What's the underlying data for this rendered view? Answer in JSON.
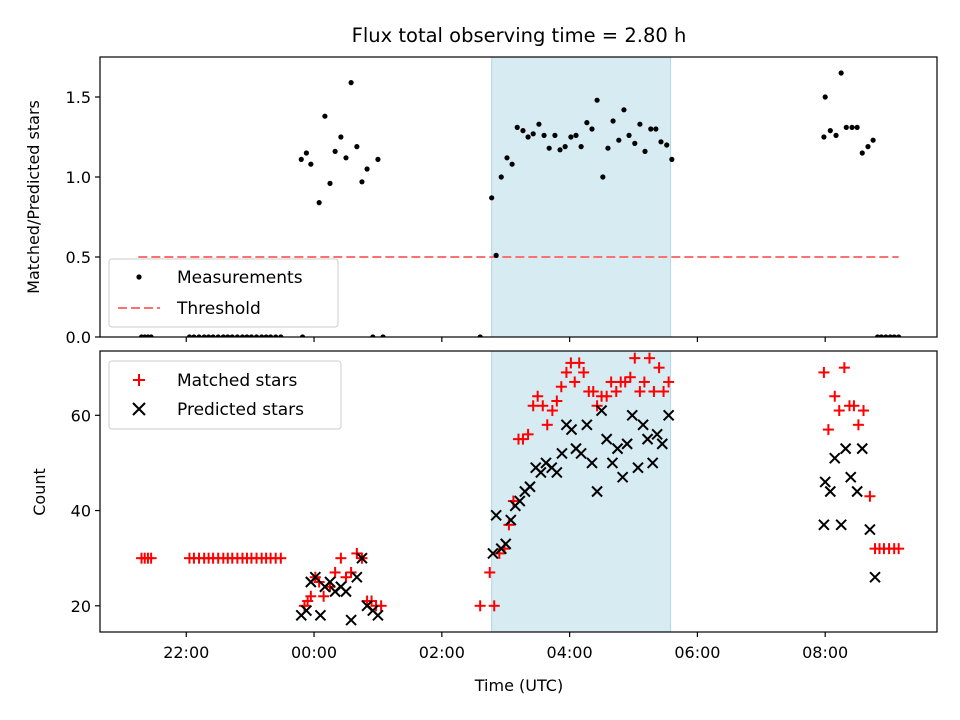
{
  "figure_title": "Flux total observing time = 2.80 h",
  "colors": {
    "measurement": "#000000",
    "threshold": "#ff7070",
    "matched": "#ff0000",
    "predicted": "#000000",
    "span": "#add8e6"
  },
  "chart_data": [
    {
      "type": "scatter",
      "title": "Flux total observing time = 2.80 h",
      "xlabel": "",
      "ylabel": "Matched/Predicted stars",
      "x_unit": "hours relative to 00:00 UTC",
      "xlim": [
        -3.35,
        9.75
      ],
      "ylim": [
        0,
        1.75
      ],
      "yticks": [
        0.0,
        0.5,
        1.0,
        1.5
      ],
      "ytick_labels": [
        "0.0",
        "0.5",
        "1.0",
        "1.5"
      ],
      "grid": false,
      "legend_position": "lower-left",
      "shaded_span": {
        "x": [
          2.78,
          5.58
        ]
      },
      "threshold": {
        "name": "Threshold",
        "y": 0.5,
        "x": [
          -2.75,
          9.15
        ],
        "style": "dashed"
      },
      "series": [
        {
          "name": "Measurements",
          "marker": "dot",
          "points": [
            [
              -2.7,
              0
            ],
            [
              -2.65,
              0
            ],
            [
              -2.6,
              0
            ],
            [
              -2.55,
              0
            ],
            [
              -1.95,
              0
            ],
            [
              -1.88,
              0
            ],
            [
              -1.8,
              0
            ],
            [
              -1.72,
              0
            ],
            [
              -1.65,
              0
            ],
            [
              -1.58,
              0
            ],
            [
              -1.5,
              0
            ],
            [
              -1.42,
              0
            ],
            [
              -1.35,
              0
            ],
            [
              -1.28,
              0
            ],
            [
              -1.2,
              0
            ],
            [
              -1.12,
              0
            ],
            [
              -1.05,
              0
            ],
            [
              -0.98,
              0
            ],
            [
              -0.9,
              0
            ],
            [
              -0.82,
              0
            ],
            [
              -0.75,
              0
            ],
            [
              -0.68,
              0
            ],
            [
              -0.6,
              0
            ],
            [
              -0.52,
              0
            ],
            [
              -0.18,
              0
            ],
            [
              -0.2,
              1.11
            ],
            [
              -0.12,
              1.15
            ],
            [
              -0.05,
              1.08
            ],
            [
              0.08,
              0.84
            ],
            [
              0.17,
              1.38
            ],
            [
              0.25,
              0.96
            ],
            [
              0.33,
              1.16
            ],
            [
              0.42,
              1.25
            ],
            [
              0.5,
              1.12
            ],
            [
              0.58,
              1.59
            ],
            [
              0.67,
              1.19
            ],
            [
              0.75,
              0.97
            ],
            [
              0.83,
              1.05
            ],
            [
              1.0,
              1.11
            ],
            [
              0.92,
              0
            ],
            [
              1.08,
              0
            ],
            [
              2.6,
              0
            ],
            [
              2.78,
              0.87
            ],
            [
              2.85,
              0.51
            ],
            [
              2.93,
              1.0
            ],
            [
              3.02,
              1.12
            ],
            [
              3.1,
              1.08
            ],
            [
              3.18,
              1.31
            ],
            [
              3.27,
              1.29
            ],
            [
              3.35,
              1.25
            ],
            [
              3.43,
              1.27
            ],
            [
              3.52,
              1.33
            ],
            [
              3.6,
              1.26
            ],
            [
              3.68,
              1.18
            ],
            [
              3.77,
              1.26
            ],
            [
              3.85,
              1.17
            ],
            [
              3.93,
              1.19
            ],
            [
              4.02,
              1.25
            ],
            [
              4.1,
              1.26
            ],
            [
              4.18,
              1.19
            ],
            [
              4.27,
              1.34
            ],
            [
              4.35,
              1.3
            ],
            [
              4.43,
              1.48
            ],
            [
              4.52,
              1.0
            ],
            [
              4.6,
              1.18
            ],
            [
              4.68,
              1.35
            ],
            [
              4.77,
              1.23
            ],
            [
              4.85,
              1.42
            ],
            [
              4.93,
              1.26
            ],
            [
              5.02,
              1.21
            ],
            [
              5.1,
              1.33
            ],
            [
              5.18,
              1.16
            ],
            [
              5.27,
              1.3
            ],
            [
              5.35,
              1.3
            ],
            [
              5.43,
              1.22
            ],
            [
              5.52,
              1.2
            ],
            [
              5.6,
              1.11
            ],
            [
              7.98,
              1.25
            ],
            [
              8.0,
              1.5
            ],
            [
              8.08,
              1.29
            ],
            [
              8.17,
              1.26
            ],
            [
              8.25,
              1.65
            ],
            [
              8.33,
              1.31
            ],
            [
              8.42,
              1.31
            ],
            [
              8.5,
              1.31
            ],
            [
              8.58,
              1.15
            ],
            [
              8.67,
              1.19
            ],
            [
              8.75,
              1.23
            ],
            [
              8.82,
              0
            ],
            [
              8.88,
              0
            ],
            [
              8.95,
              0
            ],
            [
              9.02,
              0
            ],
            [
              9.08,
              0
            ],
            [
              9.15,
              0
            ]
          ]
        }
      ]
    },
    {
      "type": "scatter",
      "title": "",
      "xlabel": "Time (UTC)",
      "ylabel": "Count",
      "x_unit": "hours relative to 00:00 UTC",
      "xlim": [
        -3.35,
        9.75
      ],
      "ylim": [
        14.5,
        73.5
      ],
      "xticks": [
        -2,
        0,
        2,
        4,
        6,
        8
      ],
      "xtick_labels": [
        "22:00",
        "00:00",
        "02:00",
        "04:00",
        "06:00",
        "08:00"
      ],
      "yticks": [
        20,
        40,
        60
      ],
      "ytick_labels": [
        "20",
        "40",
        "60"
      ],
      "grid": false,
      "legend_position": "upper-left",
      "shaded_span": {
        "x": [
          2.78,
          5.58
        ]
      },
      "series": [
        {
          "name": "Matched stars",
          "marker": "plus",
          "points": [
            [
              -2.7,
              30
            ],
            [
              -2.65,
              30
            ],
            [
              -2.6,
              30
            ],
            [
              -2.55,
              30
            ],
            [
              -1.95,
              30
            ],
            [
              -1.88,
              30
            ],
            [
              -1.8,
              30
            ],
            [
              -1.72,
              30
            ],
            [
              -1.65,
              30
            ],
            [
              -1.58,
              30
            ],
            [
              -1.5,
              30
            ],
            [
              -1.42,
              30
            ],
            [
              -1.35,
              30
            ],
            [
              -1.28,
              30
            ],
            [
              -1.2,
              30
            ],
            [
              -1.12,
              30
            ],
            [
              -1.05,
              30
            ],
            [
              -0.98,
              30
            ],
            [
              -0.9,
              30
            ],
            [
              -0.82,
              30
            ],
            [
              -0.75,
              30
            ],
            [
              -0.68,
              30
            ],
            [
              -0.6,
              30
            ],
            [
              -0.52,
              30
            ],
            [
              -0.15,
              20
            ],
            [
              -0.1,
              21
            ],
            [
              -0.05,
              22
            ],
            [
              0.02,
              26
            ],
            [
              0.08,
              25
            ],
            [
              0.15,
              22
            ],
            [
              0.25,
              24
            ],
            [
              0.33,
              27
            ],
            [
              0.42,
              30
            ],
            [
              0.5,
              26
            ],
            [
              0.58,
              27
            ],
            [
              0.67,
              31
            ],
            [
              0.75,
              30
            ],
            [
              0.83,
              21
            ],
            [
              0.9,
              21
            ],
            [
              0.97,
              20
            ],
            [
              1.05,
              20
            ],
            [
              2.6,
              20
            ],
            [
              2.75,
              27
            ],
            [
              2.82,
              20
            ],
            [
              2.9,
              31
            ],
            [
              2.98,
              32
            ],
            [
              3.05,
              37
            ],
            [
              3.12,
              42
            ],
            [
              3.2,
              55
            ],
            [
              3.27,
              55
            ],
            [
              3.35,
              56
            ],
            [
              3.43,
              62
            ],
            [
              3.5,
              64
            ],
            [
              3.58,
              62
            ],
            [
              3.65,
              58
            ],
            [
              3.73,
              61
            ],
            [
              3.8,
              63
            ],
            [
              3.87,
              66
            ],
            [
              3.95,
              69
            ],
            [
              4.02,
              71
            ],
            [
              4.08,
              67
            ],
            [
              4.15,
              71
            ],
            [
              4.22,
              69
            ],
            [
              4.3,
              65
            ],
            [
              4.37,
              65
            ],
            [
              4.43,
              62
            ],
            [
              4.5,
              64
            ],
            [
              4.58,
              64
            ],
            [
              4.65,
              67
            ],
            [
              4.73,
              65
            ],
            [
              4.8,
              67
            ],
            [
              4.87,
              67
            ],
            [
              4.95,
              68
            ],
            [
              5.02,
              72
            ],
            [
              5.1,
              65
            ],
            [
              5.17,
              67
            ],
            [
              5.25,
              72
            ],
            [
              5.32,
              65
            ],
            [
              5.4,
              70
            ],
            [
              5.47,
              65
            ],
            [
              5.55,
              67
            ],
            [
              7.98,
              69
            ],
            [
              8.05,
              57
            ],
            [
              8.15,
              64
            ],
            [
              8.22,
              61
            ],
            [
              8.3,
              70
            ],
            [
              8.38,
              62
            ],
            [
              8.45,
              62
            ],
            [
              8.52,
              58
            ],
            [
              8.6,
              61
            ],
            [
              8.7,
              43
            ],
            [
              8.78,
              32
            ],
            [
              8.85,
              32
            ],
            [
              8.92,
              32
            ],
            [
              9.0,
              32
            ],
            [
              9.08,
              32
            ],
            [
              9.15,
              32
            ]
          ]
        },
        {
          "name": "Predicted stars",
          "marker": "x",
          "points": [
            [
              -0.2,
              18
            ],
            [
              -0.12,
              19
            ],
            [
              -0.05,
              25
            ],
            [
              0.02,
              26
            ],
            [
              0.1,
              18
            ],
            [
              0.17,
              24
            ],
            [
              0.25,
              25
            ],
            [
              0.33,
              23
            ],
            [
              0.42,
              24
            ],
            [
              0.5,
              23
            ],
            [
              0.58,
              17
            ],
            [
              0.67,
              26
            ],
            [
              0.75,
              30
            ],
            [
              0.83,
              20
            ],
            [
              0.92,
              19
            ],
            [
              1.0,
              18
            ],
            [
              2.8,
              31
            ],
            [
              2.85,
              39
            ],
            [
              2.93,
              32
            ],
            [
              3.0,
              33
            ],
            [
              3.08,
              38
            ],
            [
              3.15,
              41
            ],
            [
              3.22,
              42
            ],
            [
              3.3,
              44
            ],
            [
              3.38,
              45
            ],
            [
              3.47,
              49
            ],
            [
              3.55,
              48
            ],
            [
              3.63,
              50
            ],
            [
              3.72,
              49
            ],
            [
              3.8,
              48
            ],
            [
              3.88,
              52
            ],
            [
              3.95,
              58
            ],
            [
              4.03,
              57
            ],
            [
              4.1,
              53
            ],
            [
              4.18,
              52
            ],
            [
              4.27,
              58
            ],
            [
              4.35,
              50
            ],
            [
              4.43,
              44
            ],
            [
              4.5,
              61
            ],
            [
              4.58,
              55
            ],
            [
              4.67,
              50
            ],
            [
              4.75,
              53
            ],
            [
              4.83,
              47
            ],
            [
              4.9,
              54
            ],
            [
              4.98,
              60
            ],
            [
              5.07,
              49
            ],
            [
              5.15,
              58
            ],
            [
              5.22,
              55
            ],
            [
              5.3,
              50
            ],
            [
              5.37,
              56
            ],
            [
              5.45,
              54
            ],
            [
              5.55,
              60
            ],
            [
              7.98,
              37
            ],
            [
              8.0,
              46
            ],
            [
              8.08,
              44
            ],
            [
              8.15,
              51
            ],
            [
              8.25,
              37
            ],
            [
              8.32,
              53
            ],
            [
              8.4,
              47
            ],
            [
              8.5,
              44
            ],
            [
              8.58,
              53
            ],
            [
              8.7,
              36
            ],
            [
              8.78,
              26
            ]
          ]
        }
      ]
    }
  ]
}
